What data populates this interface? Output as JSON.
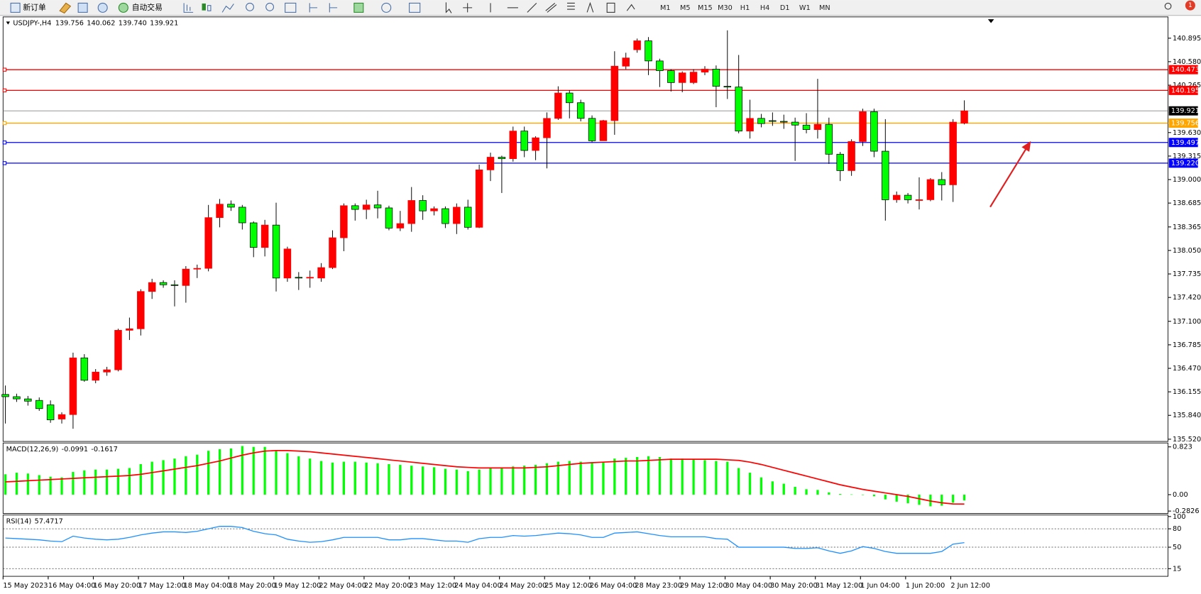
{
  "toolbar": {
    "new_order": "新订单",
    "auto_trading": "自动交易",
    "timeframes": [
      "M1",
      "M5",
      "M15",
      "M30",
      "H1",
      "H4",
      "D1",
      "W1",
      "MN"
    ],
    "notifications": "1"
  },
  "chart_data": [
    {
      "type": "candlestick",
      "title": "USDJPY-,H4",
      "last_labels": {
        "open": "139.756",
        "high": "140.062",
        "low": "139.740",
        "close": "139.921"
      },
      "categories": [
        "15 May 2023",
        null,
        null,
        null,
        "16 May 04:00",
        null,
        null,
        null,
        "16 May 20:00",
        null,
        null,
        null,
        "17 May 12:00",
        null,
        null,
        null,
        "18 May 04:00",
        null,
        null,
        null,
        "18 May 20:00",
        null,
        null,
        null,
        "19 May 12:00",
        null,
        null,
        null,
        "22 May 04:00",
        null,
        null,
        null,
        "22 May 20:00",
        null,
        null,
        null,
        "23 May 12:00",
        null,
        null,
        null,
        "24 May 04:00",
        null,
        null,
        null,
        "24 May 20:00",
        null,
        null,
        null,
        "25 May 12:00",
        null,
        null,
        null,
        "26 May 04:00",
        null,
        null,
        null,
        "28 May 23:00",
        null,
        null,
        null,
        "29 May 12:00",
        null,
        null,
        null,
        "30 May 04:00",
        null,
        null,
        null,
        "30 May 20:00",
        null,
        null,
        null,
        "31 May 12:00",
        null,
        null,
        null,
        "1 Jun 04:00",
        null,
        null,
        null,
        "1 Jun 20:00",
        null,
        null,
        null,
        "2 Jun 12:00",
        null
      ],
      "open": [
        136.12,
        136.09,
        136.06,
        136.04,
        135.98,
        135.79,
        135.85,
        136.61,
        136.31,
        136.42,
        136.45,
        136.98,
        137.0,
        137.5,
        137.62,
        137.59,
        137.58,
        137.8,
        137.81,
        138.49,
        138.67,
        138.63,
        138.42,
        138.09,
        138.39,
        137.68,
        137.69,
        137.69,
        137.68,
        137.82,
        138.22,
        138.65,
        138.6,
        138.66,
        138.62,
        138.35,
        138.41,
        138.72,
        138.58,
        138.61,
        138.41,
        138.63,
        138.36,
        139.13,
        139.3,
        139.28,
        139.65,
        139.39,
        139.56,
        139.82,
        140.16,
        140.03,
        139.82,
        139.52,
        139.79,
        140.52,
        140.74,
        140.86,
        140.59,
        140.46,
        140.3,
        140.3,
        140.44,
        140.48,
        140.25,
        140.24,
        139.65,
        139.82,
        139.79,
        139.78,
        139.77,
        139.73,
        139.67,
        139.74,
        139.34,
        139.12,
        139.51,
        139.91,
        139.38,
        138.73,
        138.79,
        138.73,
        138.73,
        139.0,
        138.93,
        139.756
      ],
      "high": [
        136.24,
        136.13,
        136.1,
        136.08,
        136.04,
        135.88,
        136.68,
        136.66,
        136.46,
        136.49,
        137.0,
        137.15,
        137.53,
        137.67,
        137.65,
        137.65,
        137.84,
        137.86,
        138.66,
        138.74,
        138.72,
        138.66,
        138.44,
        138.46,
        138.69,
        138.1,
        137.76,
        137.78,
        137.88,
        138.32,
        138.68,
        138.68,
        138.73,
        138.85,
        138.65,
        138.58,
        138.9,
        138.79,
        138.64,
        138.64,
        138.68,
        138.73,
        139.2,
        139.36,
        139.32,
        139.71,
        139.71,
        139.58,
        139.9,
        140.25,
        140.2,
        140.07,
        139.86,
        139.8,
        140.72,
        140.7,
        140.89,
        140.91,
        140.62,
        140.48,
        140.45,
        140.48,
        140.52,
        140.53,
        141.0,
        140.67,
        140.07,
        139.88,
        139.9,
        139.87,
        139.83,
        139.89,
        140.35,
        139.83,
        139.37,
        139.54,
        139.95,
        139.95,
        139.81,
        138.84,
        138.82,
        139.03,
        139.02,
        139.1,
        139.81,
        140.062
      ],
      "low": [
        135.73,
        136.02,
        135.97,
        135.9,
        135.74,
        135.73,
        135.66,
        136.29,
        136.27,
        136.37,
        136.43,
        136.85,
        136.91,
        137.4,
        137.55,
        137.3,
        137.35,
        137.68,
        137.77,
        138.36,
        138.58,
        138.33,
        137.96,
        137.97,
        137.5,
        137.63,
        137.52,
        137.55,
        137.63,
        137.8,
        138.04,
        138.45,
        138.47,
        138.48,
        138.32,
        138.31,
        138.3,
        138.46,
        138.52,
        138.35,
        138.27,
        138.33,
        138.35,
        138.98,
        138.82,
        139.24,
        139.3,
        139.26,
        139.15,
        139.8,
        139.82,
        139.78,
        139.5,
        139.52,
        139.6,
        140.48,
        140.7,
        140.4,
        140.24,
        140.18,
        140.17,
        140.28,
        140.4,
        139.97,
        140.08,
        139.62,
        139.55,
        139.7,
        139.72,
        139.68,
        139.25,
        139.62,
        139.55,
        139.21,
        138.98,
        139.05,
        139.45,
        139.3,
        138.45,
        138.69,
        138.68,
        138.6,
        138.71,
        138.72,
        138.7,
        139.74
      ],
      "close": [
        136.09,
        136.06,
        136.03,
        135.93,
        135.78,
        135.85,
        136.61,
        136.31,
        136.42,
        136.45,
        136.98,
        137.0,
        137.5,
        137.62,
        137.59,
        137.58,
        137.8,
        137.81,
        138.49,
        138.67,
        138.63,
        138.42,
        138.09,
        138.39,
        137.68,
        138.07,
        137.68,
        137.69,
        137.82,
        138.22,
        138.65,
        138.6,
        138.66,
        138.62,
        138.35,
        138.41,
        138.72,
        138.58,
        138.61,
        138.41,
        138.63,
        138.36,
        139.13,
        139.3,
        139.28,
        139.65,
        139.39,
        139.56,
        139.82,
        140.16,
        140.03,
        139.82,
        139.52,
        139.79,
        140.52,
        140.63,
        140.86,
        140.59,
        140.46,
        140.3,
        140.43,
        140.44,
        140.48,
        140.25,
        140.24,
        139.65,
        139.82,
        139.75,
        139.78,
        139.77,
        139.73,
        139.67,
        139.74,
        139.34,
        139.12,
        139.51,
        139.91,
        139.38,
        138.73,
        138.79,
        138.73,
        138.73,
        139.0,
        138.93,
        139.77,
        139.921
      ],
      "up_color": "#ff0000",
      "down_color": "#00ff00",
      "current_color": "#000000",
      "ylim": [
        135.49,
        141.18
      ],
      "yticks": [
        140.895,
        {
          "value": 140.58,
          "label": "140.580"
        },
        140.265,
        {
          "value": 139.63,
          "label": "139.630"
        },
        139.315,
        {
          "value": 139.0,
          "label": "139.000"
        },
        138.685,
        138.365,
        {
          "value": 138.05,
          "label": "138.050"
        },
        137.735,
        {
          "value": 137.42,
          "label": "137.420"
        },
        {
          "value": 137.1,
          "label": "137.100"
        },
        136.785,
        {
          "value": 136.47,
          "label": "136.470"
        },
        136.155,
        {
          "value": 135.84,
          "label": "135.840"
        },
        {
          "value": 135.52,
          "label": "135.520"
        }
      ],
      "hlines": [
        {
          "value": 140.473,
          "color": "#ff0000"
        },
        {
          "value": 140.195,
          "color": "#ff0000"
        },
        {
          "value": 139.756,
          "color": "#ffa500"
        },
        {
          "value": 139.497,
          "color": "#0000ff"
        },
        {
          "value": 139.22,
          "label": "139.220",
          "color": "#0000ff"
        }
      ]
    },
    {
      "type": "macd",
      "title": "MACD(12,26,9)",
      "histogram": {
        "color": "#00ff00",
        "values": [
          0.351,
          0.378,
          0.364,
          0.337,
          0.31,
          0.297,
          0.391,
          0.418,
          0.432,
          0.432,
          0.445,
          0.459,
          0.526,
          0.567,
          0.594,
          0.621,
          0.661,
          0.688,
          0.756,
          0.783,
          0.796,
          0.837,
          0.823,
          0.823,
          0.756,
          0.715,
          0.661,
          0.621,
          0.58,
          0.553,
          0.567,
          0.567,
          0.553,
          0.54,
          0.526,
          0.513,
          0.499,
          0.486,
          0.472,
          0.445,
          0.432,
          0.405,
          0.432,
          0.459,
          0.459,
          0.486,
          0.499,
          0.513,
          0.54,
          0.567,
          0.58,
          0.567,
          0.553,
          0.567,
          0.621,
          0.634,
          0.648,
          0.661,
          0.648,
          0.621,
          0.621,
          0.607,
          0.594,
          0.58,
          0.567,
          0.459,
          0.378,
          0.297,
          0.229,
          0.189,
          0.135,
          0.094,
          0.081,
          0.04,
          0.013,
          0.005,
          -0.005,
          -0.027,
          -0.081,
          -0.121,
          -0.148,
          -0.175,
          -0.2,
          -0.19,
          -0.14,
          -0.0991
        ]
      },
      "signal": {
        "color": "#ff0000",
        "values": [
          0.22,
          0.23,
          0.24,
          0.25,
          0.26,
          0.27,
          0.28,
          0.29,
          0.3,
          0.31,
          0.32,
          0.33,
          0.35,
          0.38,
          0.41,
          0.44,
          0.47,
          0.5,
          0.54,
          0.58,
          0.63,
          0.68,
          0.72,
          0.75,
          0.76,
          0.76,
          0.75,
          0.74,
          0.72,
          0.7,
          0.68,
          0.66,
          0.64,
          0.62,
          0.6,
          0.58,
          0.56,
          0.54,
          0.52,
          0.5,
          0.48,
          0.47,
          0.46,
          0.46,
          0.46,
          0.46,
          0.46,
          0.47,
          0.48,
          0.5,
          0.52,
          0.54,
          0.55,
          0.56,
          0.57,
          0.58,
          0.58,
          0.59,
          0.6,
          0.61,
          0.61,
          0.61,
          0.61,
          0.61,
          0.6,
          0.59,
          0.56,
          0.52,
          0.47,
          0.42,
          0.37,
          0.32,
          0.27,
          0.22,
          0.17,
          0.13,
          0.09,
          0.06,
          0.03,
          0.0,
          -0.03,
          -0.07,
          -0.11,
          -0.14,
          -0.16,
          -0.1617
        ]
      },
      "ylim": [
        -0.324,
        0.89
      ],
      "yticks": [
        0.823,
        {
          "value": 0,
          "label": "0.00"
        },
        -0.2826
      ]
    },
    {
      "type": "rsi",
      "title": "RSI(14)",
      "line": {
        "color": "#1e90ff",
        "values": [
          65,
          64,
          63,
          62,
          60,
          59,
          68,
          65,
          63,
          62,
          63,
          66,
          70,
          73,
          75,
          75,
          74,
          76,
          80,
          84,
          84,
          82,
          76,
          72,
          70,
          63,
          60,
          58,
          59,
          62,
          66,
          66,
          66,
          66,
          62,
          62,
          64,
          64,
          62,
          60,
          60,
          58,
          64,
          66,
          66,
          69,
          68,
          69,
          71,
          73,
          72,
          70,
          66,
          66,
          73,
          74,
          75,
          72,
          69,
          67,
          67,
          67,
          67,
          64,
          63,
          50,
          50,
          50,
          50,
          50,
          48,
          48,
          49,
          44,
          40,
          44,
          51,
          48,
          43,
          40,
          40,
          40,
          40,
          43,
          55,
          57.4717
        ]
      },
      "ylim": [
        2.5,
        102.5
      ],
      "yticks": [
        100,
        80,
        50,
        15
      ],
      "levels": [
        80,
        50,
        15
      ]
    }
  ]
}
